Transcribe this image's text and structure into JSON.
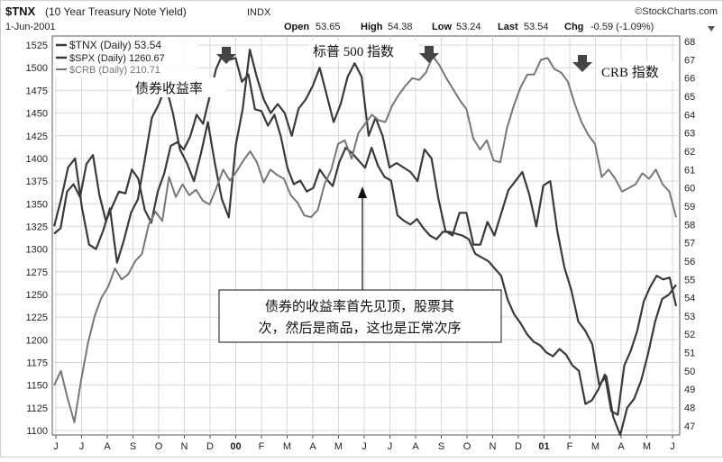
{
  "header": {
    "symbol": "$TNX",
    "description": "(10 Year Treasury Note Yield)",
    "exchange": "INDX",
    "date": "1-Jun-2001",
    "brand": "©StockCharts.com",
    "open_label": "Open",
    "open_value": "53.65",
    "high_label": "High",
    "high_value": "54.38",
    "low_label": "Low",
    "low_value": "53.24",
    "last_label": "Last",
    "last_value": "53.54",
    "chg_label": "Chg",
    "chg_value": "-0.59 (-1.09%)",
    "chg_icon": "down-triangle-icon"
  },
  "legend": [
    {
      "label": "$TNX (Daily) 53.54",
      "color": "#3a3a3a"
    },
    {
      "label": "$SPX (Daily) 1260.67",
      "color": "#3a3a3a"
    },
    {
      "label": "$CRB (Daily) 210.71",
      "color": "#777777"
    }
  ],
  "annotations": {
    "bond_yield": "债券收益率",
    "sp500": "标普 500 指数",
    "crb": "CRB 指数",
    "note_line1": "债券的收益率首先见顶，股票其",
    "note_line2": "次，然后是商品，这也是正常次序"
  },
  "chart_data": {
    "type": "line",
    "title": "$TNX (10 Year Treasury Note Yield) INDX",
    "x_labels": [
      "J",
      "J",
      "A",
      "S",
      "O",
      "N",
      "D",
      "00",
      "F",
      "M",
      "A",
      "M",
      "J",
      "J",
      "A",
      "S",
      "O",
      "N",
      "D",
      "01",
      "F",
      "M",
      "A",
      "M",
      "J"
    ],
    "left_axis": {
      "ticks": [
        1100,
        1125,
        1150,
        1175,
        1200,
        1225,
        1250,
        1275,
        1300,
        1325,
        1350,
        1375,
        1400,
        1425,
        1450,
        1475,
        1500,
        1525
      ],
      "range": [
        1095,
        1535
      ]
    },
    "right_axis": {
      "ticks": [
        47,
        48,
        49,
        50,
        51,
        52,
        53,
        54,
        55,
        56,
        57,
        58,
        59,
        60,
        61,
        62,
        63,
        64,
        65,
        66,
        67,
        68
      ],
      "range": [
        46.5,
        68.3
      ]
    },
    "grid": true,
    "legend_position": "top-left",
    "series": [
      {
        "name": "$TNX (Daily) 53.54",
        "axis": "right",
        "color": "#3a3a3a",
        "values": [
          57.5,
          57.8,
          59.8,
          60.2,
          59.5,
          61.3,
          61.8,
          59.6,
          58.2,
          59.0,
          59.8,
          59.7,
          61.0,
          60.5,
          58.8,
          58.1,
          59.8,
          60.8,
          62.3,
          62.5,
          62.1,
          62.8,
          64.0,
          63.5,
          65.0,
          66.5,
          67.3,
          67.0,
          67.1,
          65.8,
          66.2,
          64.3,
          64.2,
          63.4,
          64.0,
          62.8,
          61.1,
          60.2,
          60.4,
          59.8,
          60.0,
          61.0,
          60.5,
          60.1,
          61.4,
          62.2,
          61.9,
          61.5,
          61.1,
          62.2,
          61.2,
          60.6,
          60.4,
          58.5,
          58.2,
          58.0,
          58.3,
          57.8,
          57.4,
          57.2,
          57.6,
          57.6,
          57.5,
          57.4,
          57.2,
          56.4,
          56.2,
          56.0,
          55.6,
          55.2,
          53.9,
          53.1,
          52.6,
          52.0,
          51.6,
          51.4,
          51.0,
          50.8,
          51.2,
          50.9,
          50.3,
          50.0,
          48.2,
          48.4,
          49.0,
          49.8,
          47.8,
          47.6,
          50.3,
          51.1,
          52.2,
          53.8,
          54.6,
          55.2,
          55.0,
          55.1,
          53.54
        ]
      },
      {
        "name": "$SPX (Daily) 1260.67",
        "axis": "left",
        "color": "#3a3a3a",
        "values": [
          1325,
          1355,
          1390,
          1400,
          1345,
          1305,
          1300,
          1320,
          1345,
          1285,
          1310,
          1340,
          1355,
          1400,
          1445,
          1460,
          1480,
          1450,
          1410,
          1395,
          1375,
          1405,
          1440,
          1395,
          1355,
          1335,
          1415,
          1455,
          1520,
          1490,
          1465,
          1450,
          1460,
          1450,
          1425,
          1455,
          1465,
          1480,
          1500,
          1470,
          1440,
          1460,
          1490,
          1505,
          1490,
          1425,
          1445,
          1425,
          1390,
          1395,
          1390,
          1385,
          1375,
          1410,
          1400,
          1355,
          1320,
          1315,
          1340,
          1340,
          1305,
          1305,
          1330,
          1315,
          1340,
          1365,
          1375,
          1385,
          1360,
          1325,
          1370,
          1375,
          1320,
          1280,
          1255,
          1220,
          1210,
          1195,
          1150,
          1160,
          1115,
          1095,
          1125,
          1135,
          1155,
          1185,
          1220,
          1245,
          1250,
          1260.67
        ]
      },
      {
        "name": "$CRB (Daily) 210.71",
        "axis": "right",
        "color": "#777777",
        "values": [
          49.2,
          50.0,
          48.5,
          47.2,
          49.5,
          51.5,
          53.0,
          54.0,
          54.6,
          55.6,
          55.0,
          55.3,
          56.0,
          56.4,
          58.0,
          58.7,
          58.2,
          60.6,
          59.5,
          60.2,
          59.6,
          59.9,
          59.3,
          59.1,
          60.0,
          61.0,
          60.4,
          60.9,
          61.5,
          62.0,
          61.4,
          60.3,
          61.0,
          60.7,
          60.5,
          59.6,
          59.2,
          58.5,
          58.4,
          58.8,
          60.2,
          61.0,
          62.4,
          62.6,
          61.6,
          63.0,
          63.5,
          64.0,
          63.7,
          63.6,
          64.5,
          65.1,
          65.6,
          66.0,
          65.9,
          66.3,
          67.2,
          66.7,
          66.0,
          65.4,
          64.8,
          64.3,
          62.7,
          62.1,
          62.6,
          61.5,
          61.4,
          63.3,
          64.5,
          65.5,
          66.2,
          66.2,
          67.0,
          67.1,
          66.5,
          66.3,
          65.8,
          64.6,
          63.6,
          62.9,
          62.4,
          60.6,
          61.0,
          60.5,
          59.8,
          60.0,
          60.2,
          60.8,
          60.5,
          61.0,
          60.2,
          59.8,
          58.4
        ]
      }
    ]
  }
}
